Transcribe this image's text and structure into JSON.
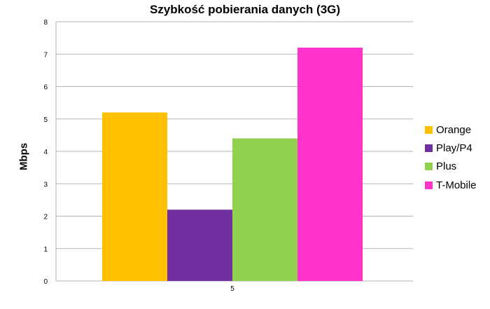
{
  "chart_data": {
    "type": "bar",
    "title": "Szybkość pobierania danych (3G)",
    "ylabel": "Mbps",
    "xlabel": "",
    "categories": [
      "5"
    ],
    "series": [
      {
        "name": "Orange",
        "values": [
          5.2
        ],
        "color": "#ffc000"
      },
      {
        "name": "Play/P4",
        "values": [
          2.2
        ],
        "color": "#7030a0"
      },
      {
        "name": "Plus",
        "values": [
          4.4
        ],
        "color": "#92d050"
      },
      {
        "name": "T-Mobile",
        "values": [
          7.2
        ],
        "color": "#ff33cc"
      }
    ],
    "ylim": [
      0,
      8
    ],
    "yticks": [
      0,
      1,
      2,
      3,
      4,
      5,
      6,
      7,
      8
    ],
    "grid": true,
    "legend": "right"
  }
}
